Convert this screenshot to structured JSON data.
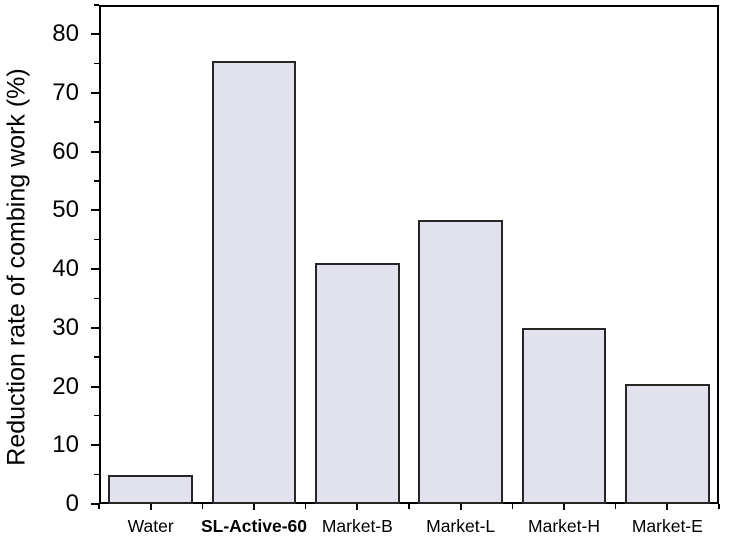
{
  "chart_data": {
    "type": "bar",
    "title": "",
    "xlabel": "",
    "ylabel": "Reduction rate of combing work (%)",
    "categories": [
      "Water",
      "SL-Active-60",
      "Market-B",
      "Market-L",
      "Market-H",
      "Market-E"
    ],
    "values": [
      4.9,
      75.5,
      41,
      48.3,
      30,
      20.5
    ],
    "bold_category": "SL-Active-60",
    "ylim": [
      0,
      85
    ],
    "y_major_tick": 10,
    "y_minor_tick": 5,
    "y_tick_labels": [
      "0",
      "10",
      "20",
      "30",
      "40",
      "50",
      "60",
      "70",
      "80"
    ],
    "grid": false,
    "legend": "none",
    "bar_width_fraction": 0.82,
    "colors": {
      "bar_fill": "#e2e1ee",
      "bar_border": "#262626",
      "axis": "#000000",
      "text": "#000000",
      "background": "#ffffff"
    }
  }
}
